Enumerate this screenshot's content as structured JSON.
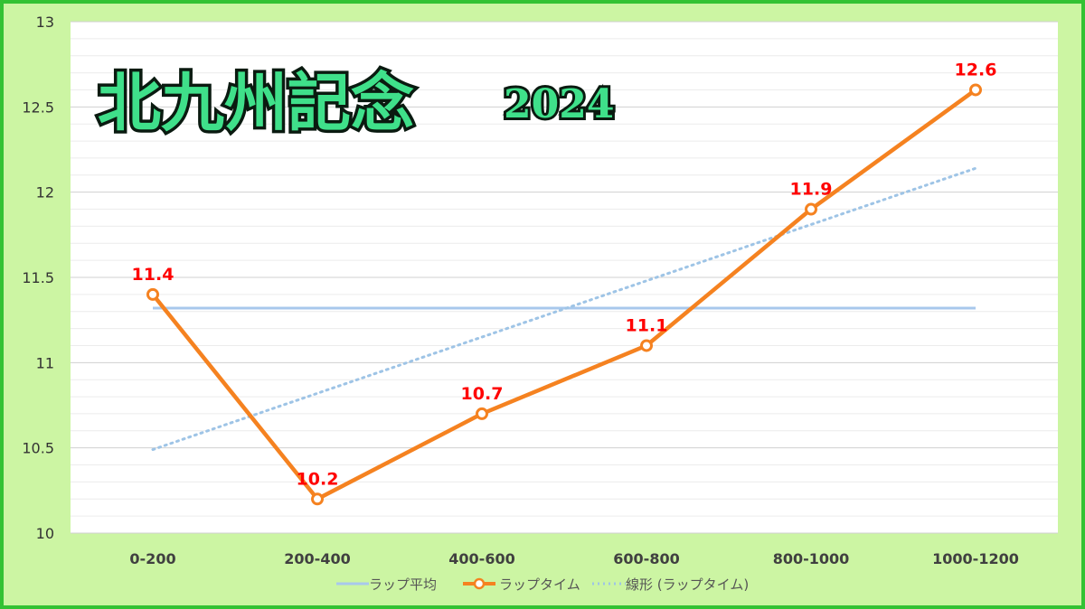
{
  "chart_data": {
    "type": "line",
    "title": "北九州記念",
    "title_year": "2024",
    "categories": [
      "0-200",
      "200-400",
      "400-600",
      "600-800",
      "800-1000",
      "1000-1200"
    ],
    "series": [
      {
        "name": "ラップ平均",
        "values": [
          11.32,
          11.32,
          11.32,
          11.32,
          11.32,
          11.32
        ],
        "color": "#a8c8ec",
        "style": "solid"
      },
      {
        "name": "ラップタイム",
        "values": [
          11.4,
          10.2,
          10.7,
          11.1,
          11.9,
          12.6
        ],
        "color": "#f58220",
        "style": "solid-markers",
        "data_labels": [
          "11.4",
          "10.2",
          "10.7",
          "11.1",
          "11.9",
          "12.6"
        ]
      },
      {
        "name": "線形 (ラップタイム)",
        "values": [
          10.49,
          10.82,
          11.15,
          11.48,
          11.81,
          12.14
        ],
        "color": "#9ec4e6",
        "style": "dotted"
      }
    ],
    "y_ticks": [
      "10",
      "10.5",
      "11",
      "11.5",
      "12",
      "12.5",
      "13"
    ],
    "ylim": [
      10,
      13
    ],
    "grid": true,
    "legend_position": "bottom",
    "data_label_color": "#ff0000",
    "frame_color": "#33c233",
    "background_color": "#ccf5a3"
  }
}
